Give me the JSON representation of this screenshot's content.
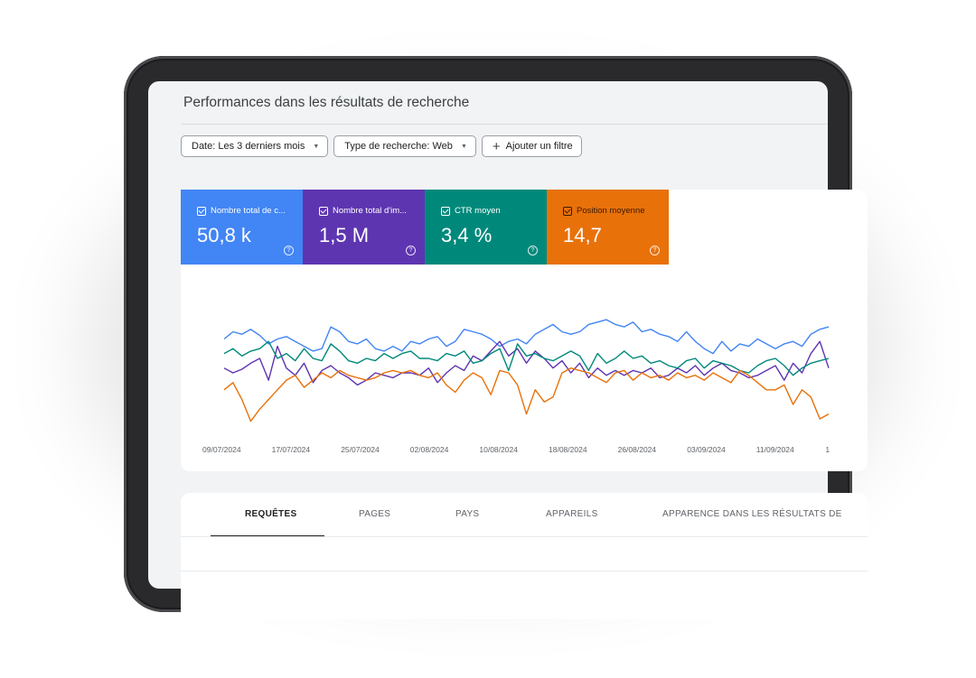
{
  "page": {
    "title": "Performances dans les résultats de recherche"
  },
  "filters": {
    "date_label": "Date: Les 3 derniers mois",
    "search_type_label": "Type de recherche: Web",
    "add_filter_label": "Ajouter un filtre"
  },
  "metrics": [
    {
      "label": "Nombre total de c...",
      "value": "50,8 k",
      "color": "#4285f4",
      "checked": true
    },
    {
      "label": "Nombre total d'im...",
      "value": "1,5 M",
      "color": "#5e35b1",
      "checked": true
    },
    {
      "label": "CTR moyen",
      "value": "3,4 %",
      "color": "#00897b",
      "checked": true
    },
    {
      "label": "Position moyenne",
      "value": "14,7",
      "color": "#e8710a",
      "checked": true
    }
  ],
  "chart_data": {
    "type": "line",
    "title": "",
    "xlabel": "",
    "ylabel": "",
    "x_tick_labels": [
      "09/07/2024",
      "17/07/2024",
      "25/07/2024",
      "02/08/2024",
      "10/08/2024",
      "18/08/2024",
      "26/08/2024",
      "03/09/2024",
      "11/09/2024",
      "1"
    ],
    "ylim": [
      0,
      100
    ],
    "grid": false,
    "legend": "none",
    "series": [
      {
        "name": "Nombre total de clics",
        "color": "#4285f4",
        "values": [
          72,
          78,
          76,
          80,
          75,
          68,
          72,
          74,
          70,
          66,
          62,
          64,
          82,
          78,
          70,
          68,
          72,
          64,
          62,
          66,
          62,
          70,
          68,
          72,
          74,
          66,
          70,
          80,
          78,
          76,
          72,
          66,
          70,
          72,
          68,
          76,
          80,
          84,
          78,
          76,
          78,
          84,
          86,
          88,
          84,
          82,
          86,
          78,
          80,
          76,
          74,
          70,
          78,
          70,
          64,
          60,
          70,
          62,
          68,
          66,
          72,
          68,
          64,
          68,
          70,
          66,
          76,
          80,
          82
        ]
      },
      {
        "name": "Nombre total d'impressions",
        "color": "#5e35b1",
        "values": [
          48,
          44,
          47,
          52,
          56,
          38,
          66,
          48,
          42,
          52,
          36,
          46,
          50,
          44,
          40,
          34,
          38,
          44,
          42,
          40,
          44,
          44,
          42,
          48,
          36,
          44,
          50,
          46,
          58,
          54,
          62,
          70,
          58,
          64,
          52,
          62,
          56,
          48,
          54,
          44,
          52,
          40,
          48,
          42,
          46,
          42,
          46,
          44,
          48,
          40,
          42,
          48,
          44,
          50,
          42,
          48,
          52,
          46,
          44,
          40,
          42,
          46,
          50,
          38,
          52,
          44,
          60,
          70,
          48
        ]
      },
      {
        "name": "CTR moyen",
        "color": "#00897b",
        "values": [
          60,
          64,
          58,
          62,
          64,
          70,
          56,
          60,
          54,
          64,
          56,
          54,
          68,
          62,
          54,
          52,
          56,
          54,
          60,
          56,
          60,
          62,
          56,
          56,
          54,
          60,
          58,
          62,
          52,
          54,
          60,
          64,
          46,
          68,
          58,
          60,
          56,
          54,
          58,
          62,
          58,
          46,
          60,
          52,
          56,
          62,
          56,
          58,
          52,
          54,
          50,
          48,
          54,
          56,
          48,
          54,
          52,
          50,
          46,
          44,
          50,
          54,
          56,
          50,
          42,
          48,
          52,
          54,
          56
        ]
      },
      {
        "name": "Position moyenne",
        "color": "#e8710a",
        "values": [
          30,
          36,
          22,
          4,
          14,
          22,
          30,
          38,
          42,
          32,
          38,
          44,
          40,
          46,
          42,
          40,
          38,
          40,
          44,
          46,
          44,
          46,
          42,
          40,
          44,
          34,
          28,
          38,
          44,
          40,
          26,
          46,
          44,
          34,
          10,
          30,
          20,
          24,
          44,
          48,
          46,
          44,
          40,
          36,
          44,
          46,
          38,
          44,
          40,
          42,
          38,
          44,
          40,
          42,
          38,
          44,
          40,
          36,
          46,
          42,
          36,
          30,
          30,
          34,
          18,
          30,
          24,
          6,
          10
        ]
      }
    ]
  },
  "tabs": [
    {
      "label": "REQUÊTES",
      "active": true
    },
    {
      "label": "PAGES",
      "active": false
    },
    {
      "label": "PAYS",
      "active": false
    },
    {
      "label": "APPAREILS",
      "active": false
    },
    {
      "label": "APPARENCE DANS LES RÉSULTATS DE",
      "active": false
    }
  ]
}
